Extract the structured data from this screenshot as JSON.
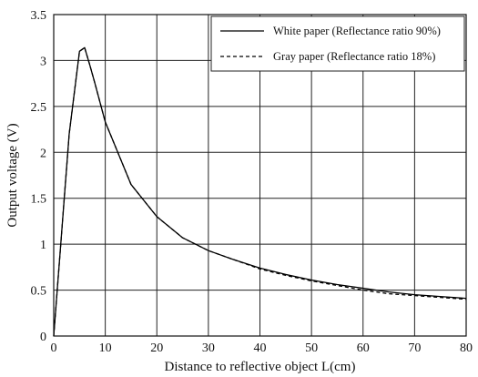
{
  "chart_data": {
    "type": "line",
    "title": "",
    "xlabel": "Distance to reflective object L(cm)",
    "ylabel": "Output voltage (V)",
    "xlim": [
      0,
      80
    ],
    "ylim": [
      0,
      3.5
    ],
    "x_ticks": [
      0,
      10,
      20,
      30,
      40,
      50,
      60,
      70,
      80
    ],
    "y_ticks": [
      0,
      0.5,
      1,
      1.5,
      2,
      2.5,
      3,
      3.5
    ],
    "x_tick_labels": [
      "0",
      "10",
      "20",
      "30",
      "40",
      "50",
      "60",
      "70",
      "80"
    ],
    "y_tick_labels": [
      "0",
      "0.5",
      "1",
      "1.5",
      "2",
      "2.5",
      "3",
      "3.5"
    ],
    "grid": true,
    "legend_position": "top-right",
    "series": [
      {
        "name": "White paper (Reflectance ratio 90%)",
        "line_style": "solid",
        "color": "#000000",
        "x": [
          0,
          3,
          5,
          6,
          7,
          8,
          10,
          15,
          20,
          25,
          30,
          35,
          40,
          45,
          50,
          55,
          60,
          65,
          70,
          75,
          80
        ],
        "y": [
          0,
          2.2,
          3.1,
          3.14,
          2.95,
          2.75,
          2.33,
          1.65,
          1.3,
          1.07,
          0.93,
          0.83,
          0.74,
          0.67,
          0.61,
          0.56,
          0.52,
          0.48,
          0.45,
          0.43,
          0.41
        ]
      },
      {
        "name": "Gray paper (Reflectance ratio 18%)",
        "line_style": "dashed",
        "color": "#000000",
        "x": [
          0,
          3,
          5,
          6,
          7,
          8,
          10,
          15,
          20,
          25,
          30,
          35,
          40,
          45,
          50,
          55,
          60,
          65,
          70,
          75,
          80
        ],
        "y": [
          0,
          2.2,
          3.1,
          3.14,
          2.95,
          2.75,
          2.33,
          1.65,
          1.3,
          1.07,
          0.93,
          0.83,
          0.73,
          0.66,
          0.6,
          0.55,
          0.5,
          0.46,
          0.44,
          0.42,
          0.4
        ]
      }
    ]
  }
}
